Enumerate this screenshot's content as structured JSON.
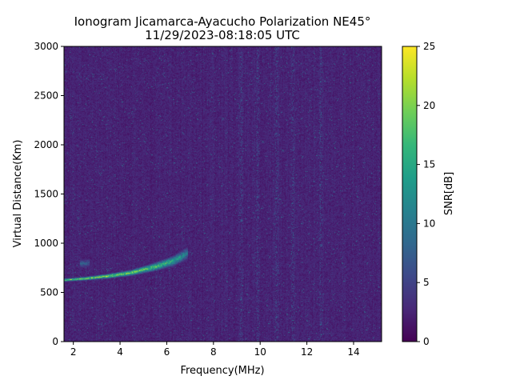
{
  "chart_data": {
    "type": "heatmap",
    "title": [
      "Ionogram Jicamarca-Ayacucho Polarization NE45°",
      "11/29/2023-08:18:05 UTC"
    ],
    "xlabel": "Frequency(MHz)",
    "ylabel": "Virtual Distance(Km)",
    "xlim": [
      1.6,
      15.2
    ],
    "ylim": [
      0,
      3000
    ],
    "xticks": [
      2,
      4,
      6,
      8,
      10,
      12,
      14
    ],
    "yticks": [
      0,
      500,
      1000,
      1500,
      2000,
      2500,
      3000
    ],
    "grid": false,
    "colormap": "viridis",
    "colorbar": {
      "label": "SNR[dB]",
      "range": [
        0,
        25
      ],
      "ticks": [
        0,
        5,
        10,
        15,
        20,
        25
      ]
    },
    "background_snr_db": 1,
    "traces": [
      {
        "name": "O-mode F-layer echo",
        "points": [
          {
            "freq_mhz": 1.6,
            "distance_km": 625,
            "snr_db": 22
          },
          {
            "freq_mhz": 2.5,
            "distance_km": 640,
            "snr_db": 25
          },
          {
            "freq_mhz": 3.5,
            "distance_km": 665,
            "snr_db": 25
          },
          {
            "freq_mhz": 4.5,
            "distance_km": 700,
            "snr_db": 24
          },
          {
            "freq_mhz": 5.5,
            "distance_km": 760,
            "snr_db": 22
          },
          {
            "freq_mhz": 6.3,
            "distance_km": 820,
            "snr_db": 18
          },
          {
            "freq_mhz": 6.9,
            "distance_km": 900,
            "snr_db": 12
          }
        ]
      },
      {
        "name": "second hop echo",
        "points": [
          {
            "freq_mhz": 2.3,
            "distance_km": 790,
            "snr_db": 10
          },
          {
            "freq_mhz": 2.7,
            "distance_km": 800,
            "snr_db": 8
          }
        ]
      }
    ],
    "interference_bands_mhz": [
      9.2,
      9.9,
      10.7,
      11.4,
      12.6
    ],
    "colors": {
      "viridis_stops": [
        "#440154",
        "#482878",
        "#3e4989",
        "#31688e",
        "#26828e",
        "#1f9e89",
        "#35b779",
        "#6ece58",
        "#b5de2b",
        "#fde725"
      ]
    }
  }
}
